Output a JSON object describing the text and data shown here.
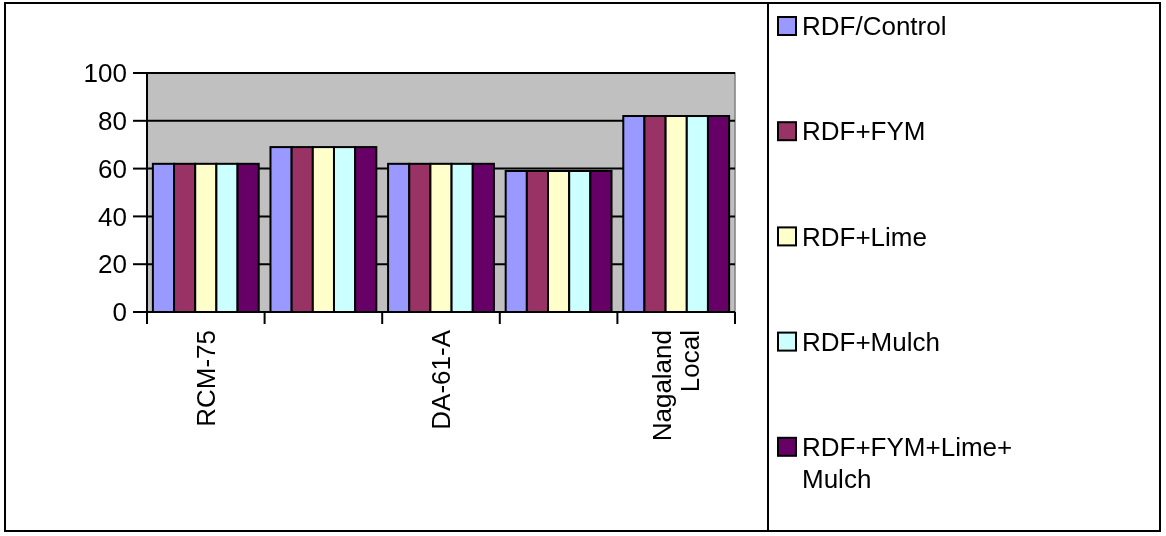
{
  "chart_data": {
    "type": "bar",
    "categories": [
      "RCM-75",
      null,
      "DA-61-A",
      null,
      "Nagaland Local"
    ],
    "series": [
      {
        "name": "RDF/Control",
        "color": "#9999ff",
        "values": [
          62,
          69,
          62,
          59,
          82
        ]
      },
      {
        "name": "RDF+FYM",
        "color": "#993366",
        "values": [
          62,
          69,
          62,
          59,
          82
        ]
      },
      {
        "name": "RDF+Lime",
        "color": "#ffffcc",
        "values": [
          62,
          69,
          62,
          59,
          82
        ]
      },
      {
        "name": "RDF+Mulch",
        "color": "#ccffff",
        "values": [
          62,
          69,
          62,
          59,
          82
        ]
      },
      {
        "name": "RDF+FYM+Lime+Mulch",
        "color": "#660066",
        "values": [
          62,
          69,
          62,
          59,
          82
        ]
      }
    ],
    "ylim": [
      0,
      100
    ],
    "yticks": [
      0,
      20,
      40,
      60,
      80,
      100
    ],
    "grid": "y",
    "legend": "right"
  }
}
